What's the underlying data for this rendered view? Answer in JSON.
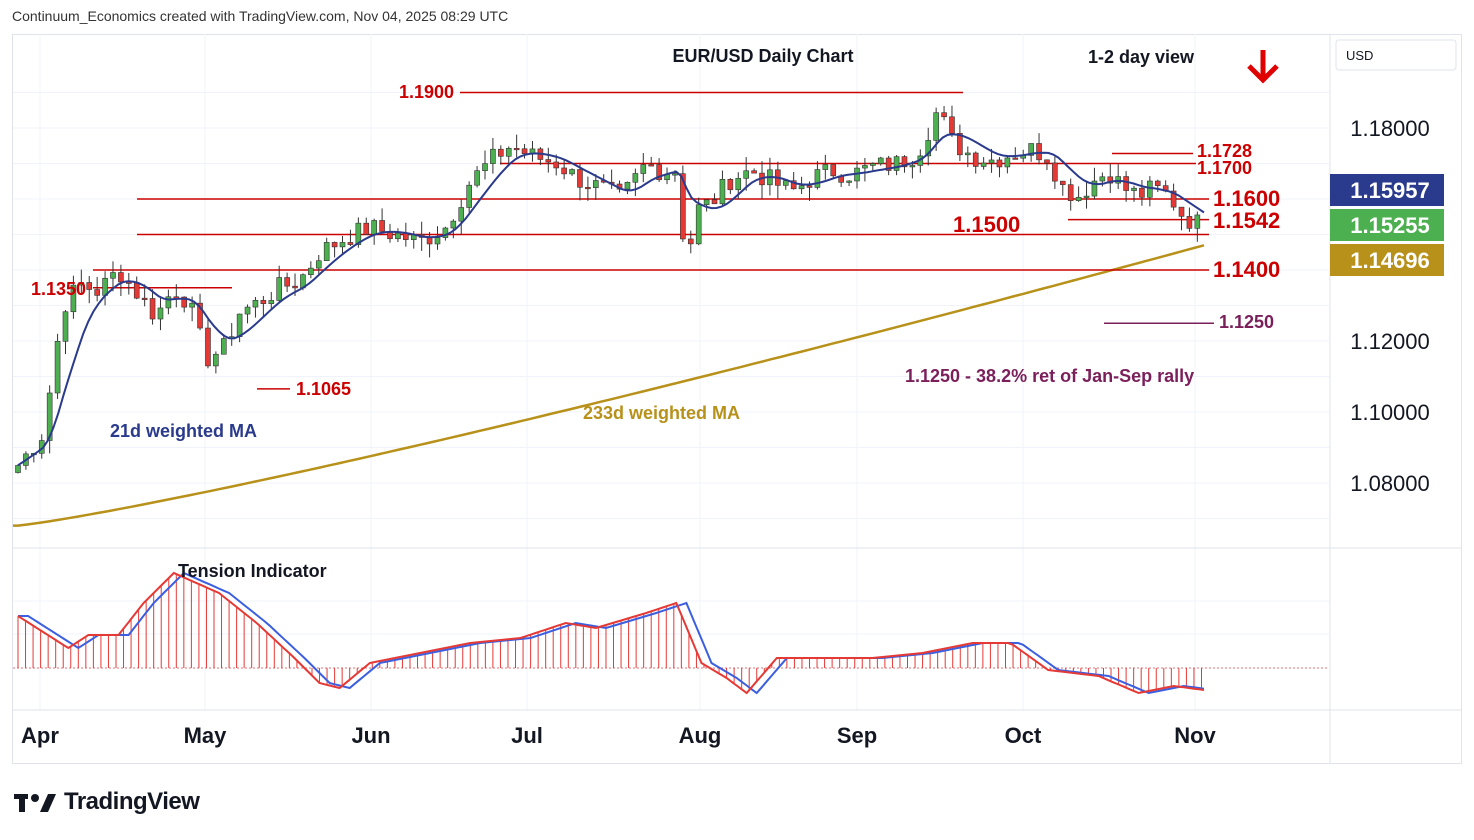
{
  "header": {
    "attribution": "Continuum_Economics created with TradingView.com, Nov 04, 2025 08:29 UTC"
  },
  "footer": {
    "brand": "TradingView"
  },
  "chart_data": {
    "type": "candlestick",
    "title": "EUR/USD Daily Chart",
    "view": "1-2 day view",
    "view_direction": "down",
    "currency": "USD",
    "y_ticks": [
      "1.18000",
      "1.12000",
      "1.10000",
      "1.08000"
    ],
    "x_ticks": [
      "Apr",
      "May",
      "Jun",
      "Jul",
      "Aug",
      "Sep",
      "Oct",
      "Nov"
    ],
    "price_badges": [
      {
        "label": "1.15957",
        "color": "#2a3a8c"
      },
      {
        "label": "1.15255",
        "color": "#4caf50"
      },
      {
        "label": "1.14696",
        "color": "#b8911a"
      }
    ],
    "levels": [
      {
        "value": 1.19,
        "label": "1.1900"
      },
      {
        "value": 1.1728,
        "label": "1.1728"
      },
      {
        "value": 1.17,
        "label": "1.1700"
      },
      {
        "value": 1.16,
        "label": "1.1600"
      },
      {
        "value": 1.1542,
        "label": "1.1542"
      },
      {
        "value": 1.15,
        "label": "1.1500"
      },
      {
        "value": 1.14,
        "label": "1.1400"
      },
      {
        "value": 1.135,
        "label": "1.1350"
      },
      {
        "value": 1.125,
        "label": "1.1250"
      },
      {
        "value": 1.1065,
        "label": "1.1065"
      }
    ],
    "annotations": [
      {
        "text": "1.1250 - 38.2% ret of Jan-Sep rally",
        "color": "#7b1f5a"
      },
      {
        "text": "21d weighted MA",
        "color": "#2a3a8c"
      },
      {
        "text": "233d weighted MA",
        "color": "#b8911a"
      },
      {
        "text": "Tension Indicator",
        "color": "#131722"
      }
    ],
    "ma21": {
      "name": "21d weighted MA",
      "color": "#2a3a8c",
      "last": 1.15957
    },
    "ma233": {
      "name": "233d weighted MA",
      "color": "#b8911a",
      "last": 1.14696
    },
    "last_close": 1.15255,
    "up_color": "#4caf50",
    "down_color": "#e53935",
    "level_color": "#cc0000"
  }
}
